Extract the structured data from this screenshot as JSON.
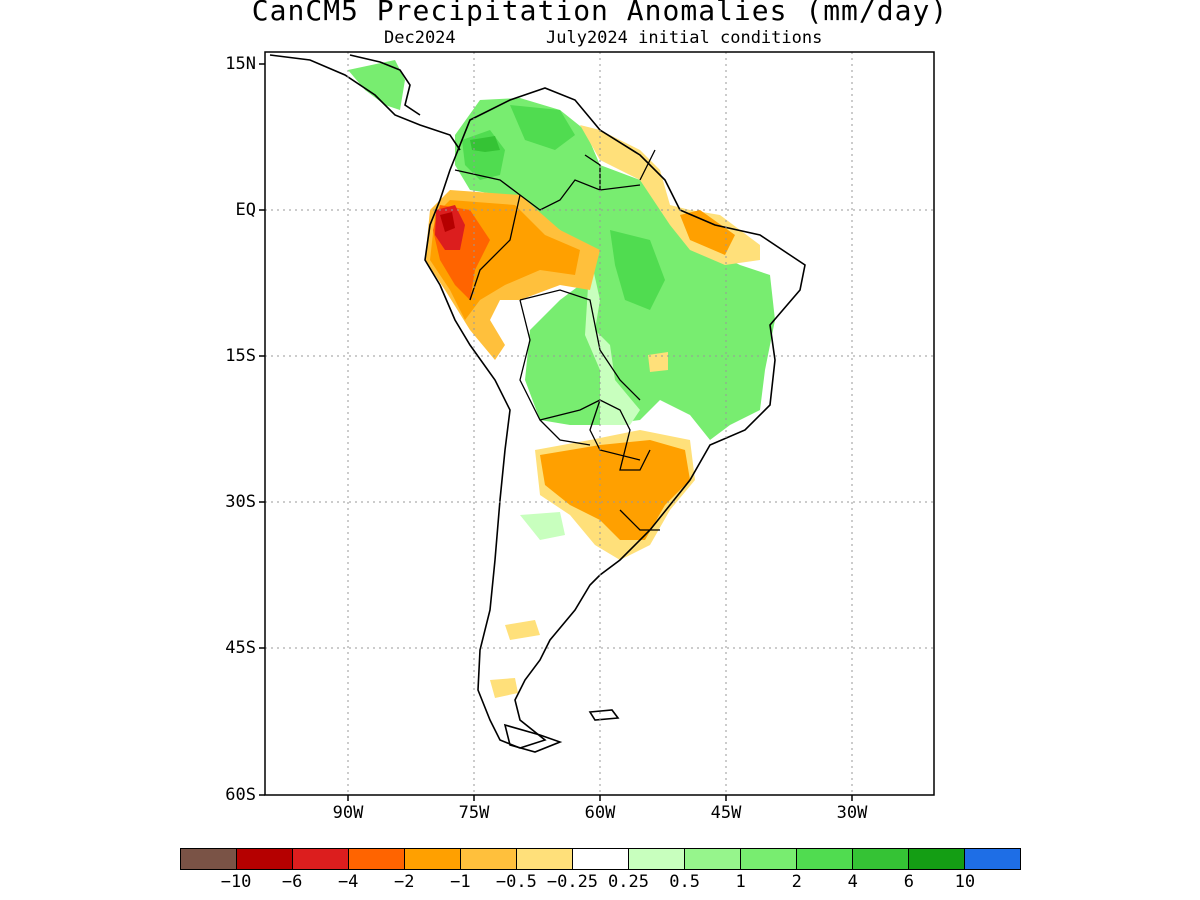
{
  "title": "CanCM5 Precipitation Anomalies (mm/day)",
  "subtitle_left": "Dec2024",
  "subtitle_right": "July2024 initial conditions",
  "lat_labels": [
    "15N",
    "EQ",
    "15S",
    "30S",
    "45S",
    "60S"
  ],
  "lon_labels": [
    "90W",
    "75W",
    "60W",
    "45W",
    "30W"
  ],
  "legend": {
    "colors": [
      "#7a5346",
      "#b50000",
      "#dc1e1e",
      "#ff6400",
      "#ffa000",
      "#ffc03c",
      "#ffe07a",
      "#ffffff",
      "#c8ffbe",
      "#96f58c",
      "#78ed70",
      "#50dc50",
      "#35c335",
      "#149e14",
      "#1e6ee6"
    ],
    "labels": [
      "−10",
      "−6",
      "−4",
      "−2",
      "−1",
      "−0.5",
      "−0.25",
      "0.25",
      "0.5",
      "1",
      "2",
      "4",
      "6",
      "10"
    ]
  },
  "anomaly_colors": {
    "dry_strong": "#b50000",
    "dry_mid": "#dc1e1e",
    "dry": "#ff6400",
    "dry_light": "#ffa000",
    "dry_weak": "#ffc03c",
    "dry_faint": "#ffe07a",
    "wet_faint": "#c8ffbe",
    "wet_light": "#96f58c",
    "wet": "#78ed70",
    "wet_mid": "#50dc50",
    "wet_strong": "#35c335",
    "wet_max": "#149e14"
  }
}
